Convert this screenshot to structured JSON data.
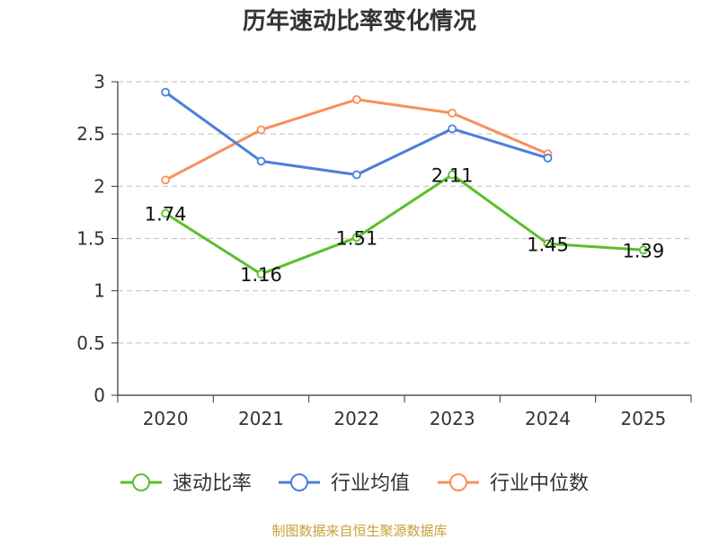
{
  "chart_data": {
    "type": "line",
    "title": "历年速动比率变化情况",
    "categories": [
      "2020",
      "2021",
      "2022",
      "2023",
      "2024",
      "2025"
    ],
    "ylim": [
      0,
      3
    ],
    "yticks": [
      "0",
      "0.5",
      "1",
      "1.5",
      "2",
      "2.5",
      "3"
    ],
    "grid": true,
    "legend_position": "bottom",
    "series": [
      {
        "name": "速动比率",
        "color": "#5bbf2a",
        "values": [
          1.74,
          1.16,
          1.51,
          2.11,
          1.45,
          1.39
        ],
        "labels": [
          "1.74",
          "1.16",
          "1.51",
          "2.11",
          "1.45",
          "1.39"
        ]
      },
      {
        "name": "行业均值",
        "color": "#4a7fdc",
        "values": [
          2.9,
          2.24,
          2.11,
          2.55,
          2.27,
          null
        ]
      },
      {
        "name": "行业中位数",
        "color": "#f7905a",
        "values": [
          2.06,
          2.54,
          2.83,
          2.7,
          2.31,
          null
        ]
      }
    ]
  },
  "source": {
    "text": "制图数据来自恒生聚源数据库",
    "color": "#c8a03c"
  }
}
